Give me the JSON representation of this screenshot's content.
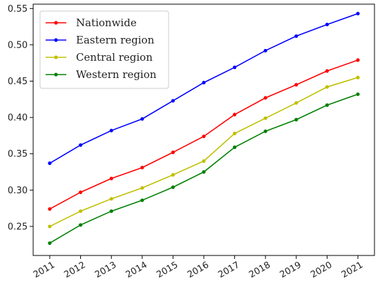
{
  "chart_data": {
    "type": "line",
    "title": "",
    "xlabel": "",
    "ylabel": "",
    "x": [
      "2011",
      "2012",
      "2013",
      "2014",
      "2015",
      "2016",
      "2017",
      "2018",
      "2019",
      "2020",
      "2021"
    ],
    "ylim": [
      0.21,
      0.556
    ],
    "yticks": [
      "0.25",
      "0.30",
      "0.35",
      "0.40",
      "0.45",
      "0.50",
      "0.55"
    ],
    "grid": false,
    "legend_position": "top-left",
    "series": [
      {
        "name": "Nationwide",
        "color": "#ff0000",
        "values": [
          0.274,
          0.297,
          0.316,
          0.331,
          0.352,
          0.374,
          0.404,
          0.427,
          0.445,
          0.464,
          0.479
        ]
      },
      {
        "name": "Eastern region",
        "color": "#0000ff",
        "values": [
          0.337,
          0.362,
          0.382,
          0.398,
          0.423,
          0.448,
          0.469,
          0.492,
          0.512,
          0.528,
          0.543
        ]
      },
      {
        "name": "Central region",
        "color": "#bfbf00",
        "values": [
          0.25,
          0.271,
          0.288,
          0.303,
          0.321,
          0.34,
          0.378,
          0.399,
          0.42,
          0.442,
          0.455
        ]
      },
      {
        "name": "Western region",
        "color": "#008000",
        "values": [
          0.227,
          0.252,
          0.271,
          0.286,
          0.304,
          0.325,
          0.359,
          0.381,
          0.397,
          0.417,
          0.432
        ]
      }
    ]
  }
}
